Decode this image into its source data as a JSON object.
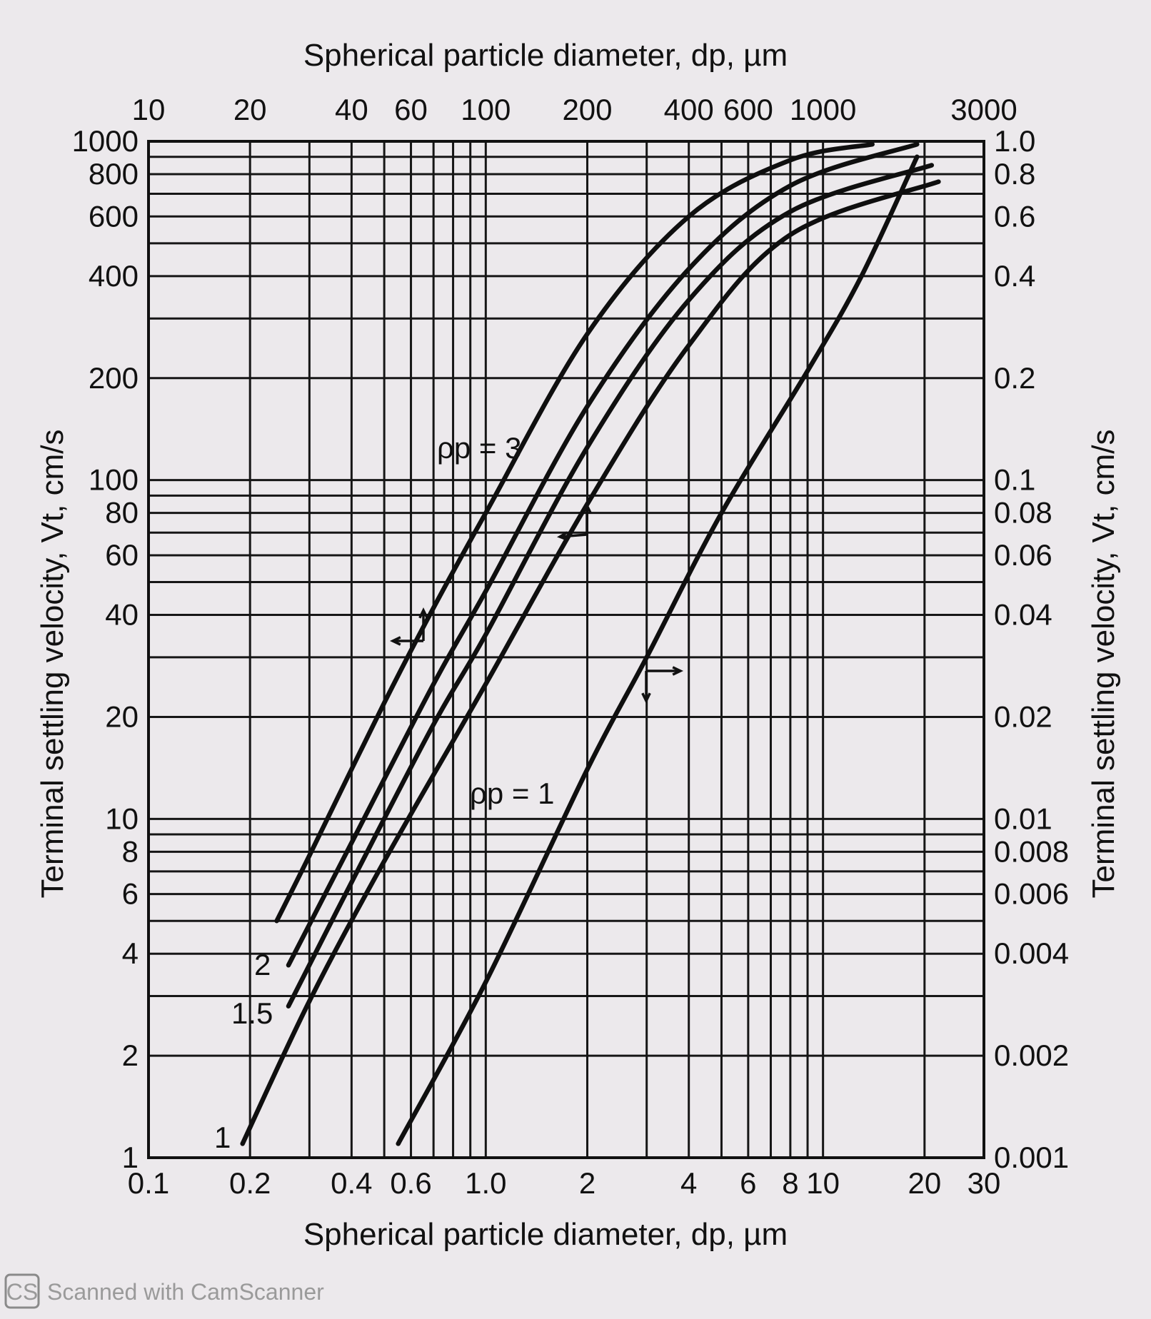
{
  "chart_data": {
    "type": "line",
    "top_xlabel": "Spherical particle diameter, dp, µm",
    "bottom_xlabel": "Spherical particle diameter, dp, µm",
    "left_ylabel": "Terminal settling velocity, Vt, cm/s",
    "right_ylabel": "Terminal settling velocity, Vt, cm/s",
    "x_scale": "log",
    "y_scale": "log",
    "bottom_xlim": [
      0.1,
      30
    ],
    "top_xlim": [
      10,
      3000
    ],
    "left_ylim": [
      1,
      1000
    ],
    "right_ylim": [
      0.001,
      1.0
    ],
    "top_ticks": [
      "10",
      "20",
      "40",
      "60",
      "100",
      "200",
      "400",
      "600",
      "1000",
      "3000"
    ],
    "top_tick_values": [
      10,
      20,
      40,
      60,
      100,
      200,
      400,
      600,
      1000,
      3000
    ],
    "bottom_ticks": [
      "0.1",
      "0.2",
      "0.4",
      "0.6",
      "1.0",
      "2",
      "4",
      "6",
      "8",
      "10",
      "20",
      "30"
    ],
    "bottom_tick_values": [
      0.1,
      0.2,
      0.4,
      0.6,
      1.0,
      2,
      4,
      6,
      8,
      10,
      20,
      30
    ],
    "left_ticks": [
      "1000",
      "800",
      "600",
      "400",
      "200",
      "100",
      "80",
      "60",
      "40",
      "20",
      "10",
      "8",
      "6",
      "4",
      "2",
      "1"
    ],
    "left_tick_values": [
      1000,
      800,
      600,
      400,
      200,
      100,
      80,
      60,
      40,
      20,
      10,
      8,
      6,
      4,
      2,
      1
    ],
    "right_ticks": [
      "1.0",
      "0.8",
      "0.6",
      "0.4",
      "0.2",
      "0.1",
      "0.08",
      "0.06",
      "0.04",
      "0.02",
      "0.01",
      "0.008",
      "0.006",
      "0.004",
      "0.002",
      "0.001"
    ],
    "right_tick_values": [
      1.0,
      0.8,
      0.6,
      0.4,
      0.2,
      0.1,
      0.08,
      0.06,
      0.04,
      0.02,
      0.01,
      0.008,
      0.006,
      0.004,
      0.002,
      0.001
    ],
    "grid_x_values": [
      0.1,
      0.2,
      0.3,
      0.4,
      0.5,
      0.6,
      0.7,
      0.8,
      0.9,
      1,
      2,
      3,
      4,
      5,
      6,
      7,
      8,
      9,
      10,
      20,
      30
    ],
    "grid_y_values": [
      1,
      2,
      3,
      4,
      5,
      6,
      7,
      8,
      9,
      10,
      20,
      30,
      40,
      50,
      60,
      70,
      80,
      90,
      100,
      200,
      300,
      400,
      500,
      600,
      700,
      800,
      900,
      1000
    ],
    "grid": true,
    "annotations": [
      "ρp = 3",
      "ρp = 1"
    ],
    "series": [
      {
        "name": "ρp = 3",
        "label": "",
        "axis": "bottom-x / right-y (cm/s)",
        "points": [
          [
            0.24,
            0.005
          ],
          [
            0.3,
            0.0078
          ],
          [
            0.5,
            0.022
          ],
          [
            0.7,
            0.042
          ],
          [
            1.0,
            0.08
          ],
          [
            2.0,
            0.27
          ],
          [
            4.0,
            0.6
          ],
          [
            8.0,
            0.88
          ],
          [
            14.0,
            0.98
          ]
        ]
      },
      {
        "name": "ρp = 2",
        "label": "2",
        "axis": "bottom-x / right-y (cm/s)",
        "points": [
          [
            0.26,
            0.0037
          ],
          [
            0.4,
            0.0085
          ],
          [
            0.7,
            0.025
          ],
          [
            1.0,
            0.047
          ],
          [
            2.0,
            0.165
          ],
          [
            4.0,
            0.42
          ],
          [
            8.0,
            0.74
          ],
          [
            19.0,
            0.98
          ]
        ]
      },
      {
        "name": "ρp = 1.5",
        "label": "1.5",
        "axis": "bottom-x / right-y (cm/s)",
        "points": [
          [
            0.26,
            0.0028
          ],
          [
            0.4,
            0.0065
          ],
          [
            0.7,
            0.019
          ],
          [
            1.0,
            0.035
          ],
          [
            2.0,
            0.125
          ],
          [
            4.0,
            0.34
          ],
          [
            8.0,
            0.62
          ],
          [
            21.0,
            0.85
          ]
        ]
      },
      {
        "name": "ρp = 1 (nominal, right scale)",
        "label": "1",
        "axis": "bottom-x / right-y (cm/s)",
        "points": [
          [
            0.19,
            0.0011
          ],
          [
            0.3,
            0.0029
          ],
          [
            0.5,
            0.0075
          ],
          [
            1.0,
            0.025
          ],
          [
            2.0,
            0.085
          ],
          [
            4.0,
            0.25
          ],
          [
            8.0,
            0.53
          ],
          [
            22.0,
            0.76
          ]
        ]
      },
      {
        "name": "ρp = 1 (large particles, left scale)",
        "label": "",
        "axis": "top-x / left-y (cm/s)",
        "points": [
          [
            55,
            1.1
          ],
          [
            100,
            3.3
          ],
          [
            200,
            14
          ],
          [
            300,
            30
          ],
          [
            500,
            80
          ],
          [
            900,
            210
          ],
          [
            1300,
            400
          ],
          [
            1900,
            900
          ]
        ]
      }
    ]
  },
  "watermark": {
    "badge": "CS",
    "text": "Scanned with CamScanner"
  }
}
